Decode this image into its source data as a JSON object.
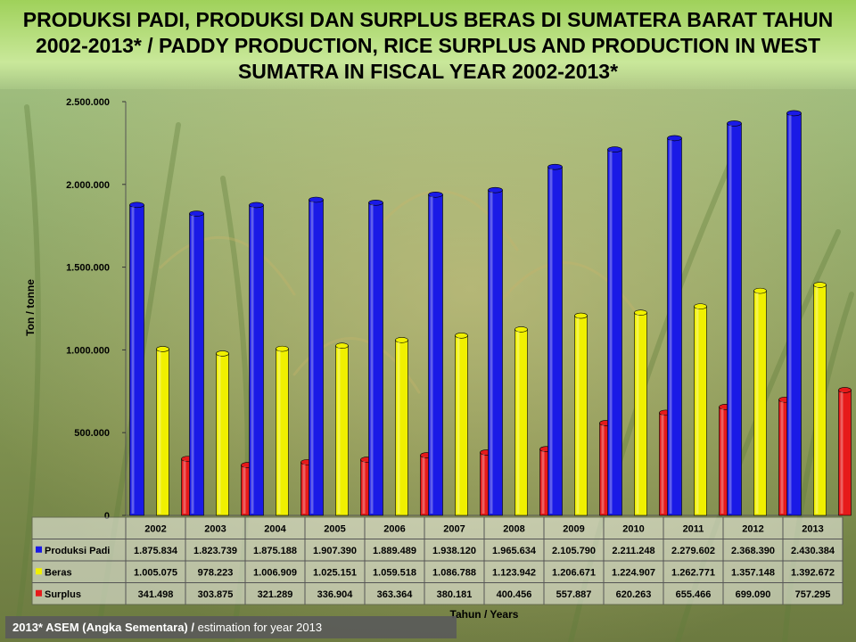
{
  "header": {
    "title": "PRODUKSI PADI, PRODUKSI DAN SURPLUS BERAS DI SUMATERA BARAT TAHUN 2002-2013* / PADDY PRODUCTION, RICE SURPLUS AND PRODUCTION IN WEST SUMATRA IN FISCAL YEAR 2002-2013*"
  },
  "footnote": {
    "bold": "2013* ASEM (Angka Sementara) /",
    "text": " estimation for year 2013"
  },
  "colors": {
    "padi": "#1a1ae6",
    "beras": "#f0f000",
    "surplus": "#e61a1a"
  },
  "chart_data": {
    "type": "bar",
    "title": "PRODUKSI PADI, PRODUKSI DAN SURPLUS BERAS DI SUMATERA BARAT TAHUN 2002-2013* / PADDY PRODUCTION, RICE SURPLUS AND PRODUCTION IN WEST SUMATRA IN FISCAL YEAR 2002-2013*",
    "xlabel": "Tahun / Years",
    "ylabel": "Ton / tonne",
    "ylim": [
      0,
      2500000
    ],
    "yticks": [
      0,
      500000,
      1000000,
      1500000,
      2000000,
      2500000
    ],
    "ytick_labels": [
      "0",
      "500.000",
      "1.000.000",
      "1.500.000",
      "2.000.000",
      "2.500.000"
    ],
    "categories": [
      "2002",
      "2003",
      "2004",
      "2005",
      "2006",
      "2007",
      "2008",
      "2009",
      "2010",
      "2011",
      "2012",
      "2013"
    ],
    "series": [
      {
        "name": "Produksi Padi",
        "values": [
          1875834,
          1823739,
          1875188,
          1907390,
          1889489,
          1938120,
          1965634,
          2105790,
          2211248,
          2279602,
          2368390,
          2430384
        ],
        "labels": [
          "1.875.834",
          "1.823.739",
          "1.875.188",
          "1.907.390",
          "1.889.489",
          "1.938.120",
          "1.965.634",
          "2.105.790",
          "2.211.248",
          "2.279.602",
          "2.368.390",
          "2.430.384"
        ]
      },
      {
        "name": "Beras",
        "values": [
          1005075,
          978223,
          1006909,
          1025151,
          1059518,
          1086788,
          1123942,
          1206671,
          1224907,
          1262771,
          1357148,
          1392672
        ],
        "labels": [
          "1.005.075",
          "978.223",
          "1.006.909",
          "1.025.151",
          "1.059.518",
          "1.086.788",
          "1.123.942",
          "1.206.671",
          "1.224.907",
          "1.262.771",
          "1.357.148",
          "1.392.672"
        ]
      },
      {
        "name": "Surplus",
        "values": [
          341498,
          303875,
          321289,
          336904,
          363364,
          380181,
          400456,
          557887,
          620263,
          655466,
          699090,
          757295
        ],
        "labels": [
          "341.498",
          "303.875",
          "321.289",
          "336.904",
          "363.364",
          "380.181",
          "400.456",
          "557.887",
          "620.263",
          "655.466",
          "699.090",
          "757.295"
        ]
      }
    ],
    "grid": false,
    "legend": "data-table-left"
  }
}
